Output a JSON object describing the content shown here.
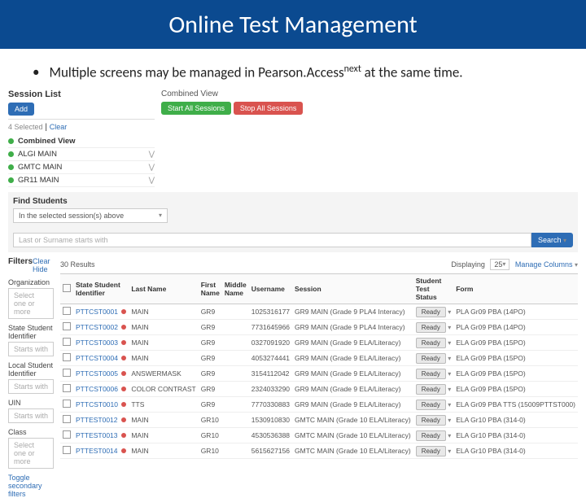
{
  "slide": {
    "title": "Online Test Management",
    "bullet": "Multiple screens may be managed in  Pearson.Access",
    "bullet_sup": "next",
    "bullet_tail": " at the same time."
  },
  "colors": {
    "title_bg": "#0b4a90",
    "btn_blue": "#2e6db5",
    "btn_green": "#3fae49",
    "btn_red": "#d9534f"
  },
  "session_panel": {
    "title": "Session List",
    "add_btn": "Add",
    "selected_text": "4 Selected",
    "clear_link": "Clear",
    "combined_label": "Combined View",
    "items": [
      {
        "label": "ALGI MAIN"
      },
      {
        "label": "GMTC MAIN"
      },
      {
        "label": "GR11 MAIN"
      }
    ]
  },
  "combined": {
    "header": "Combined View",
    "start_btn": "Start All Sessions",
    "stop_btn": "Stop All Sessions"
  },
  "find": {
    "title": "Find Students",
    "scope": "In the selected session(s) above",
    "search_ph": "Last or Surname starts with",
    "search_btn": "Search"
  },
  "filters": {
    "title": "Filters",
    "clear_link": "Clear Hide",
    "org_label": "Organization",
    "org_ph": "Select one or more",
    "ssid_label": "State Student Identifier",
    "ssid_ph": "Starts with",
    "local_label": "Local Student Identifier",
    "local_ph": "Starts with",
    "uin_label": "UIN",
    "uin_ph": "Starts with",
    "class_label": "Class",
    "class_ph": "Select one or more",
    "toggle_link": "Toggle secondary filters"
  },
  "results": {
    "count_label": "30 Results",
    "displaying_label": "Displaying",
    "page_size": "25",
    "manage_cols": "Manage Columns",
    "columns": [
      "",
      "State Student Identifier",
      "Last Name",
      "First Name",
      "Middle Name",
      "Username",
      "Session",
      "Student Test Status",
      "Form"
    ],
    "rows": [
      {
        "ssid": "PTTCST0001",
        "last": "MAIN",
        "first": "GR9",
        "mid": "",
        "user": "1025316177",
        "sess": "GR9 MAIN (Grade 9 PLA4 Interacy)",
        "status": "Ready",
        "form": "PLA Gr09 PBA (14PO)"
      },
      {
        "ssid": "PTTCST0002",
        "last": "MAIN",
        "first": "GR9",
        "mid": "",
        "user": "7731645966",
        "sess": "GR9 MAIN (Grade 9 PLA4 Interacy)",
        "status": "Ready",
        "form": "PLA Gr09 PBA (14PO)"
      },
      {
        "ssid": "PTTCST0003",
        "last": "MAIN",
        "first": "GR9",
        "mid": "",
        "user": "0327091920",
        "sess": "GR9 MAIN (Grade 9 ELA/Literacy)",
        "status": "Ready",
        "form": "ELA Gr09 PBA (15PO)"
      },
      {
        "ssid": "PTTCST0004",
        "last": "MAIN",
        "first": "GR9",
        "mid": "",
        "user": "4053274441",
        "sess": "GR9 MAIN (Grade 9 ELA/Literacy)",
        "status": "Ready",
        "form": "ELA Gr09 PBA (15PO)"
      },
      {
        "ssid": "PTTCST0005",
        "last": "ANSWERMASK",
        "first": "GR9",
        "mid": "",
        "user": "3154112042",
        "sess": "GR9 MAIN (Grade 9 ELA/Literacy)",
        "status": "Ready",
        "form": "ELA Gr09 PBA (15PO)"
      },
      {
        "ssid": "PTTCST0006",
        "last": "COLOR CONTRAST",
        "first": "GR9",
        "mid": "",
        "user": "2324033290",
        "sess": "GR9 MAIN (Grade 9 ELA/Literacy)",
        "status": "Ready",
        "form": "ELA Gr09 PBA (15PO)"
      },
      {
        "ssid": "PTTCST0010",
        "last": "TTS",
        "first": "GR9",
        "mid": "",
        "user": "7770330883",
        "sess": "GR9 MAIN (Grade 9 ELA/Literacy)",
        "status": "Ready",
        "form": "ELA Gr09 PBA TTS (15009PTTST000)"
      },
      {
        "ssid": "PTTEST0012",
        "last": "MAIN",
        "first": "GR10",
        "mid": "",
        "user": "1530910830",
        "sess": "GMTC MAIN (Grade 10 ELA/Literacy)",
        "status": "Ready",
        "form": "ELA Gr10 PBA (314-0)"
      },
      {
        "ssid": "PTTEST0013",
        "last": "MAIN",
        "first": "GR10",
        "mid": "",
        "user": "4530536388",
        "sess": "GMTC MAIN (Grade 10 ELA/Literacy)",
        "status": "Ready",
        "form": "ELA Gr10 PBA (314-0)"
      },
      {
        "ssid": "PTTEST0014",
        "last": "MAIN",
        "first": "GR10",
        "mid": "",
        "user": "5615627156",
        "sess": "GMTC MAIN (Grade 10 ELA/Literacy)",
        "status": "Ready",
        "form": "ELA Gr10 PBA (314-0)"
      }
    ]
  }
}
